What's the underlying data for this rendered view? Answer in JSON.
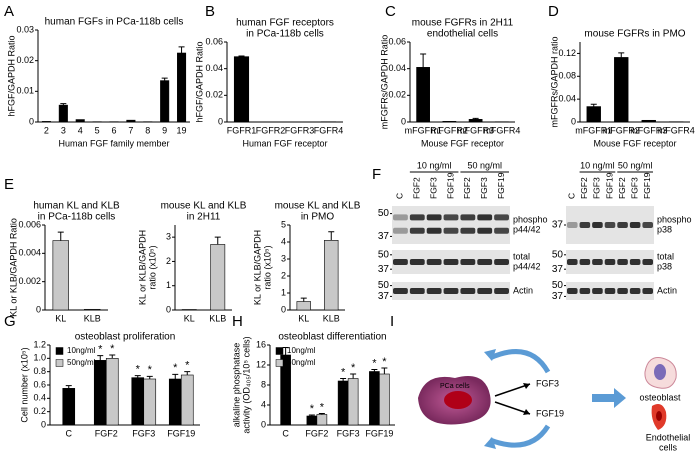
{
  "panel_letters": [
    "A",
    "B",
    "C",
    "D",
    "E",
    "F",
    "G",
    "H",
    "I"
  ],
  "chart_data": [
    {
      "type": "bar",
      "title": [
        "human FGFs in PCa-118b cells"
      ],
      "ylabel": [
        "hFGF/GAPDH Ratio"
      ],
      "xlabel": "Human FGF family member",
      "categories": [
        "2",
        "3",
        "4",
        "5",
        "6",
        "7",
        "8",
        "9",
        "19"
      ],
      "values": [
        0.0002,
        0.0055,
        0.0008,
        0.0001,
        0.0001,
        0.0006,
        0.0001,
        0.0135,
        0.0225
      ],
      "errors": [
        null,
        0.0005,
        null,
        null,
        null,
        null,
        null,
        0.0008,
        0.002
      ],
      "color": "#000000",
      "ylim": [
        0,
        0.03
      ],
      "yticks": [
        0,
        0.01,
        0.02,
        0.03
      ]
    },
    {
      "type": "bar",
      "title": [
        "human FGF receptors",
        "in PCa-118b cells"
      ],
      "ylabel": [
        "hFGF/GAPDH Ratio"
      ],
      "xlabel": "Human FGF receptor",
      "categories": [
        "FGFR1",
        "FGFR2",
        "FGFR3",
        "FGFR4"
      ],
      "values": [
        0.049,
        0,
        0,
        0.0002
      ],
      "errors": [
        0.0005,
        null,
        null,
        null
      ],
      "color": "#000000",
      "ylim": [
        0,
        0.06
      ],
      "yticks": [
        0,
        0.02,
        0.04,
        0.06
      ]
    },
    {
      "type": "bar",
      "title": [
        "mouse FGFRs in 2H11",
        "endothelial cells"
      ],
      "ylabel": [
        "mFGFRs/GAPDH Ratio"
      ],
      "xlabel": "Mouse FGF receptor",
      "categories": [
        "mFGFR1",
        "mFGFR2",
        "mFGFR3",
        "mFGFR4"
      ],
      "values": [
        0.041,
        0.0005,
        0.002,
        0.0002
      ],
      "errors": [
        0.01,
        null,
        0.0007,
        null
      ],
      "color": "#000000",
      "ylim": [
        0,
        0.06
      ],
      "yticks": [
        0,
        0.02,
        0.04,
        0.06
      ]
    },
    {
      "type": "bar",
      "title": [
        "mouse FGFRs in PMO"
      ],
      "ylabel": [
        "mFGFRs/GAPDH ratio"
      ],
      "xlabel": "Mouse FGF receptor",
      "categories": [
        "mFGFR1",
        "mFGFR2",
        "mFGFR3",
        "mFGFR4"
      ],
      "values": [
        0.027,
        0.113,
        0.003,
        0.0005
      ],
      "errors": [
        0.004,
        0.008,
        null,
        null
      ],
      "color": "#000000",
      "ylim": [
        0,
        0.14
      ],
      "yticks": [
        0,
        0.04,
        0.08,
        0.12
      ]
    },
    {
      "type": "bar",
      "title": [
        "human KL and KLB",
        "in PCa-118b cells"
      ],
      "ylabel": [
        "KL or KLB/GAPDH Ratio"
      ],
      "categories": [
        "KL",
        "KLB"
      ],
      "values": [
        0.0049,
        5e-05
      ],
      "errors": [
        0.0006,
        null
      ],
      "color": "#c8c8c8",
      "ylim": [
        0,
        0.006
      ],
      "yticks": [
        0,
        0.002,
        0.004,
        0.006
      ]
    },
    {
      "type": "bar",
      "title": [
        "mouse KL and KLB",
        "in 2H11"
      ],
      "ylabel": [
        "KL or KLB/GAPDH",
        "ratio (x10⁵)"
      ],
      "categories": [
        "KL",
        "KLB"
      ],
      "values": [
        0.02,
        2.7
      ],
      "errors": [
        null,
        0.3
      ],
      "color": "#c8c8c8",
      "ylim": [
        0,
        3.5
      ],
      "yticks": [
        0,
        1,
        2,
        3
      ]
    },
    {
      "type": "bar",
      "title": [
        "mouse KL and KLB",
        "in PMO"
      ],
      "ylabel": [
        "KL or KLB/GAPDH",
        "ratio (x10⁵)"
      ],
      "categories": [
        "KL",
        "KLB"
      ],
      "values": [
        0.5,
        4.1
      ],
      "errors": [
        0.2,
        0.5
      ],
      "color": "#c8c8c8",
      "ylim": [
        0,
        5
      ],
      "yticks": [
        0,
        1,
        2,
        3,
        4,
        5
      ]
    },
    {
      "type": "bar",
      "title": [
        "osteoblast proliferation"
      ],
      "ylabel": [
        "Cell number (x10⁵)"
      ],
      "categories": [
        "C",
        "FGF2",
        "FGF3",
        "FGF19"
      ],
      "legend": "upper left",
      "ylim": [
        0,
        1.2
      ],
      "yticks": [
        0,
        0.2,
        0.4,
        0.6,
        0.8,
        {
          "value": 1,
          "label": "1.0"
        },
        1.2
      ],
      "series": [
        {
          "name": "10ng/ml",
          "color": "#000000",
          "values": [
            0.55,
            0.97,
            0.71,
            0.69
          ],
          "errors": [
            0.04,
            0.07,
            0.03,
            0.07
          ],
          "significance": [
            null,
            "*",
            "*",
            "*"
          ]
        },
        {
          "name": "50ng/ml",
          "color": "#c8c8c8",
          "values": [
            null,
            1.0,
            0.69,
            0.75
          ],
          "errors": [
            null,
            0.05,
            0.04,
            0.05
          ],
          "significance": [
            null,
            "*",
            "*",
            "*"
          ]
        }
      ]
    },
    {
      "type": "bar",
      "title": [
        "osteoblast differentiation"
      ],
      "ylabel": [
        "alkaline phosphatase",
        "activity (OD₄₀₅/10⁵ cells)"
      ],
      "categories": [
        "C",
        "FGF2",
        "FGF3",
        "FGF19"
      ],
      "legend": "upper left",
      "ylim": [
        0,
        16
      ],
      "yticks": [
        0,
        4,
        8,
        12,
        16
      ],
      "series": [
        {
          "name": "10ng/ml",
          "color": "#000000",
          "values": [
            14,
            1.8,
            8.8,
            10.7
          ],
          "errors": [
            1.5,
            0.2,
            0.5,
            0.4
          ],
          "significance": [
            null,
            "*",
            "*",
            "*"
          ]
        },
        {
          "name": "50ng/ml",
          "color": "#c8c8c8",
          "values": [
            null,
            2.1,
            9.3,
            10.2
          ],
          "errors": [
            null,
            0.2,
            0.9,
            1.2
          ],
          "significance": [
            null,
            "*",
            "*",
            "*"
          ]
        }
      ]
    }
  ],
  "blots": [
    {
      "concentrations": [
        "10 ng/ml",
        "50 ng/ml"
      ],
      "lanes": [
        "C",
        "FGF2",
        "FGF3",
        "FGF19",
        "FGF2",
        "FGF3",
        "FGF19"
      ],
      "rows": [
        {
          "label": [
            "phospho",
            "p44/42"
          ],
          "markers": [
            50,
            37
          ]
        },
        {
          "label": [
            "total",
            "p44/42"
          ],
          "markers": [
            50,
            37
          ]
        },
        {
          "label": [
            "Actin"
          ],
          "markers": [
            50,
            37
          ]
        }
      ]
    },
    {
      "concentrations": [
        "10 ng/ml",
        "50 ng/ml"
      ],
      "lanes": [
        "C",
        "FGF2",
        "FGF3",
        "FGF19",
        "FGF2",
        "FGF3",
        "FGF19"
      ],
      "rows": [
        {
          "label": [
            "phospho",
            "p38"
          ],
          "markers": [
            37
          ]
        },
        {
          "label": [
            "total",
            "p38"
          ],
          "markers": [
            50,
            37
          ]
        },
        {
          "label": [
            "Actin"
          ],
          "markers": [
            50,
            37
          ]
        }
      ]
    }
  ],
  "diagram": {
    "source": "PCa cells",
    "factors": [
      "FGF3",
      "FGF19"
    ],
    "targets": [
      [
        "osteoblast"
      ],
      [
        "Endothelial",
        "cells"
      ]
    ]
  }
}
